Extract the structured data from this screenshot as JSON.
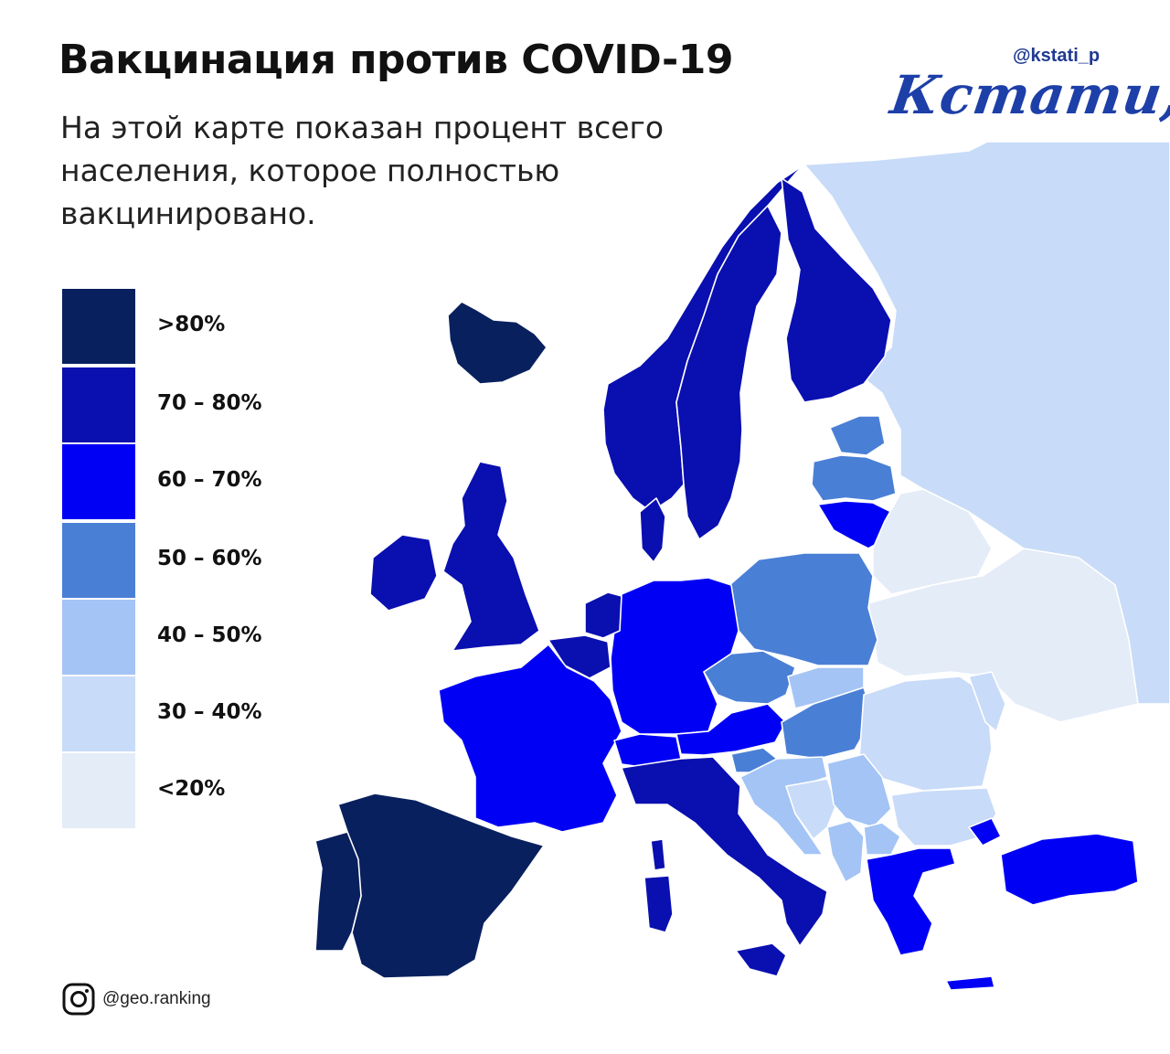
{
  "header": {
    "title": "Вакцинация против COVID-19",
    "subtitle": "На этой карте показан процент всего населения, которое полностью вакцинировано."
  },
  "brand": {
    "handle": "@kstati_p",
    "logo_text": "Кстати,",
    "color": "#1d3fa8"
  },
  "legend": {
    "items": [
      {
        "label": ">80%",
        "color": "#08205e"
      },
      {
        "label": "70 – 80%",
        "color": "#0a0fb0"
      },
      {
        "label": "60 – 70%",
        "color": "#0000f5"
      },
      {
        "label": "50 – 60%",
        "color": "#4a7fd6"
      },
      {
        "label": "40 – 50%",
        "color": "#a3c4f5"
      },
      {
        "label": "30 – 40%",
        "color": "#c8dbf8"
      },
      {
        "label": "<20%",
        "color": "#e4ecf8"
      }
    ]
  },
  "credit": {
    "icon": "instagram-icon",
    "text": "@geo.ranking"
  }
}
